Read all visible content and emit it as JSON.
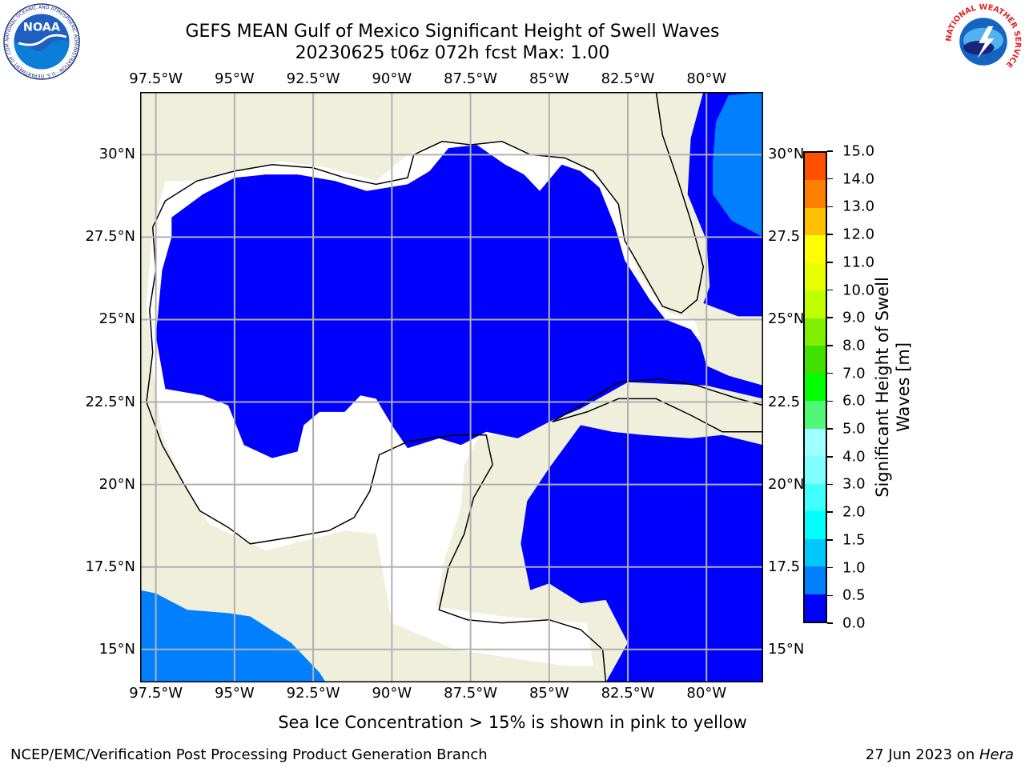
{
  "title": {
    "line1": "GEFS MEAN Gulf of Mexico Significant Height of Swell Waves",
    "line2": "20230625 t06z 072h fcst   Max: 1.00"
  },
  "axes": {
    "lon_labels": [
      "97.5°W",
      "95°W",
      "92.5°W",
      "90°W",
      "87.5°W",
      "85°W",
      "82.5°W",
      "80°W"
    ],
    "lon_values": [
      -97.5,
      -95,
      -92.5,
      -90,
      -87.5,
      -85,
      -82.5,
      -80
    ],
    "lat_labels": [
      "30°N",
      "27.5°N",
      "25°N",
      "22.5°N",
      "20°N",
      "17.5°N",
      "15°N"
    ],
    "lat_values": [
      30,
      27.5,
      25,
      22.5,
      20,
      17.5,
      15
    ],
    "lat_labels_right": [
      "30°N",
      "27.5",
      "25°N",
      "22.5",
      "20°N",
      "17.5",
      "15°N"
    ],
    "lon_range": [
      -98,
      -78.2
    ],
    "lat_range": [
      14,
      31.9
    ]
  },
  "colorbar": {
    "title_line1": "Significant Height of Swell",
    "title_line2": "Waves [m]",
    "labels": [
      "0.0",
      "0.5",
      "1.0",
      "1.5",
      "2.0",
      "3.0",
      "4.0",
      "5.0",
      "6.0",
      "7.0",
      "8.0",
      "9.0",
      "10.0",
      "11.0",
      "12.0",
      "13.0",
      "14.0",
      "15.0"
    ],
    "colors": [
      "#0000ff",
      "#0080ff",
      "#00c8ff",
      "#00ffff",
      "#40ffff",
      "#80ffff",
      "#a0ffff",
      "#50f878",
      "#00ff00",
      "#40e000",
      "#80f000",
      "#c0ff00",
      "#e8ff00",
      "#ffff00",
      "#ffc000",
      "#ff8000",
      "#ff5000",
      "#ff2000",
      "#ff0000"
    ]
  },
  "colors": {
    "land": "#efefdc",
    "ocean_low": "#0000ff",
    "ocean_mid": "#0080ff",
    "missing": "#ffffff",
    "grid": "#b0b0b0"
  },
  "subtitle": "Sea Ice Concentration > 15% is shown in pink to yellow",
  "footer": {
    "credit": "NCEP/EMC/Verification Post Processing Product Generation Branch",
    "date_prefix": "27 Jun 2023 on ",
    "host": "Hera"
  },
  "logos": {
    "noaa_text": "NOAA",
    "noaa_ring": "NATIONAL OCEANIC AND ATMOSPHERIC ADMINISTRATION · U.S. DEPARTMENT OF COMMERCE ·",
    "nws_ring": "NATIONAL WEATHER SERVICE"
  },
  "icons": {
    "noaa": "noaa-logo-icon",
    "nws": "nws-logo-icon"
  }
}
